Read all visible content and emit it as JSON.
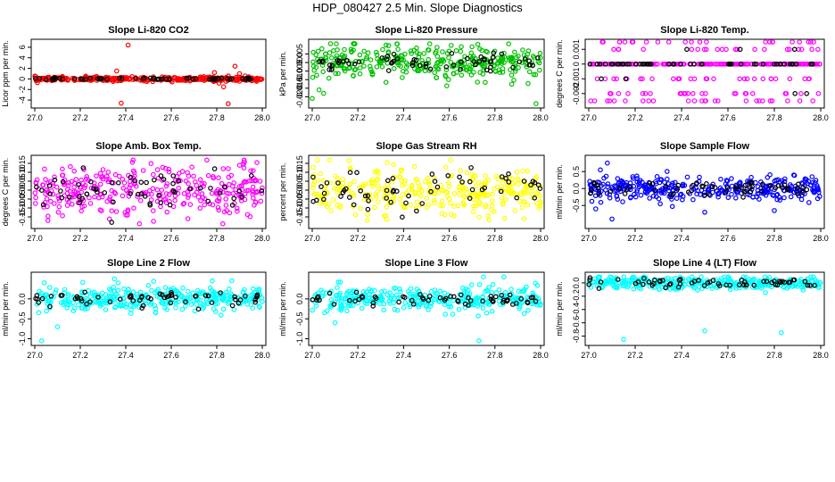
{
  "page_title": "HDP_080427  2.5 Min. Slope Diagnostics",
  "chart_data": [
    {
      "type": "scatter",
      "title": "Slope Li-820 CO2",
      "ylabel": "Licor ppm per min.",
      "color": "#ff0000",
      "xlim": [
        27.0,
        28.0
      ],
      "ylim": [
        -5,
        7
      ],
      "xticks": [
        27.0,
        27.2,
        27.4,
        27.6,
        27.8,
        28.0
      ],
      "xtick_labels": [
        "27.0",
        "27.2",
        "27.4",
        "27.6",
        "27.8",
        "28.0"
      ],
      "yticks": [
        -4,
        -2,
        0,
        2,
        4,
        6
      ],
      "ytick_labels": [
        "-4",
        "-2",
        "0",
        "2",
        "4",
        "6"
      ],
      "center": 0.0,
      "spread": 0.25,
      "black_spread": 0.12,
      "outliers": [
        [
          27.36,
          1.5
        ],
        [
          27.41,
          6.4
        ],
        [
          27.38,
          -4.6
        ],
        [
          27.79,
          1.2
        ],
        [
          27.83,
          -1.5
        ],
        [
          27.85,
          -4.7
        ],
        [
          27.88,
          2.4
        ],
        [
          27.9,
          1.0
        ],
        [
          27.81,
          -0.8
        ]
      ]
    },
    {
      "type": "scatter",
      "title": "Slope Li-820 Pressure",
      "ylabel": "kPa per min.",
      "color": "#00c000",
      "xlim": [
        27.0,
        28.0
      ],
      "ylim": [
        -0.025,
        0.012
      ],
      "xticks": [
        27.0,
        27.2,
        27.4,
        27.6,
        27.8,
        28.0
      ],
      "xtick_labels": [
        "27.0",
        "27.2",
        "27.4",
        "27.6",
        "27.8",
        "28.0"
      ],
      "yticks": [
        -0.02,
        -0.015,
        -0.01,
        -0.005,
        0.0,
        0.005
      ],
      "ytick_labels": [
        "-0.020",
        "-0.015",
        "-0.010",
        "-0.005",
        "0.000",
        "0.005"
      ],
      "center": 0.0,
      "spread": 0.006,
      "black_spread": 0.003,
      "outliers": [
        [
          27.0,
          -0.021
        ],
        [
          27.98,
          -0.024
        ],
        [
          27.08,
          0.011
        ],
        [
          27.18,
          0.011
        ],
        [
          27.05,
          -0.018
        ],
        [
          27.03,
          -0.016
        ]
      ]
    },
    {
      "type": "scatter",
      "title": "Slope Li-820 Temp.",
      "ylabel": "degrees C per min.",
      "color": "#ff00ff",
      "xlim": [
        27.0,
        28.0
      ],
      "ylim": [
        -0.0028,
        0.0015
      ],
      "xticks": [
        27.0,
        27.2,
        27.4,
        27.6,
        27.8,
        28.0
      ],
      "xtick_labels": [
        "27.0",
        "27.2",
        "27.4",
        "27.6",
        "27.8",
        "28.0"
      ],
      "yticks": [
        -0.002,
        -0.001,
        0.0,
        0.001
      ],
      "ytick_labels": [
        "-0.002",
        "-0.001",
        "0",
        "0.001"
      ],
      "center": 0.0,
      "levels": [
        0.0015,
        0.001,
        0.0,
        -0.001,
        -0.002,
        -0.0025
      ],
      "spread": 0.0,
      "black_spread": 0.0,
      "outliers": []
    },
    {
      "type": "scatter",
      "title": "Slope Amb. Box Temp.",
      "ylabel": "degrees C per min.",
      "color": "#ff00ff",
      "xlim": [
        27.0,
        28.0
      ],
      "ylim": [
        -0.2,
        0.18
      ],
      "xticks": [
        27.0,
        27.2,
        27.4,
        27.6,
        27.8,
        28.0
      ],
      "xtick_labels": [
        "27.0",
        "27.2",
        "27.4",
        "27.6",
        "27.8",
        "28.0"
      ],
      "yticks": [
        -0.15,
        -0.1,
        -0.05,
        0.0,
        0.05,
        0.1,
        0.15
      ],
      "ytick_labels": [
        "-0.15",
        "-0.10",
        "-0.05",
        "0.00",
        "0.05",
        "0.10",
        "0.15"
      ],
      "center": 0.0,
      "spread": 0.09,
      "black_spread": 0.06,
      "outliers": []
    },
    {
      "type": "scatter",
      "title": "Slope Gas Stream RH",
      "ylabel": "percent per min.",
      "color": "#ffff00",
      "xlim": [
        27.0,
        28.0
      ],
      "ylim": [
        -0.2,
        0.18
      ],
      "xticks": [
        27.0,
        27.2,
        27.4,
        27.6,
        27.8,
        28.0
      ],
      "xtick_labels": [
        "27.0",
        "27.2",
        "27.4",
        "27.6",
        "27.8",
        "28.0"
      ],
      "yticks": [
        -0.15,
        -0.1,
        -0.05,
        0.0,
        0.05,
        0.1,
        0.15
      ],
      "ytick_labels": [
        "-0.15",
        "-0.10",
        "-0.05",
        "0.00",
        "0.05",
        "0.10",
        "0.15"
      ],
      "center": 0.0,
      "spread": 0.08,
      "black_spread": 0.06,
      "outliers": []
    },
    {
      "type": "scatter",
      "title": "Slope Sample Flow",
      "ylabel": "ml/min per min.",
      "color": "#0000ff",
      "xlim": [
        27.0,
        28.0
      ],
      "ylim": [
        -1.1,
        0.9
      ],
      "xticks": [
        27.0,
        27.2,
        27.4,
        27.6,
        27.8,
        28.0
      ],
      "xtick_labels": [
        "27.0",
        "27.2",
        "27.4",
        "27.6",
        "27.8",
        "28.0"
      ],
      "yticks": [
        -0.5,
        0.0,
        0.5
      ],
      "ytick_labels": [
        "-0.5",
        "0.0",
        "0.5"
      ],
      "center": 0.0,
      "spread": 0.22,
      "black_spread": 0.12,
      "outliers": [
        [
          27.08,
          0.75
        ],
        [
          27.05,
          0.55
        ],
        [
          27.1,
          -0.9
        ],
        [
          27.5,
          -0.7
        ],
        [
          27.8,
          -0.65
        ],
        [
          27.03,
          -0.6
        ]
      ]
    },
    {
      "type": "scatter",
      "title": "Slope Line 2 Flow",
      "ylabel": "ml/min per min.",
      "color": "#00ffff",
      "xlim": [
        27.0,
        28.0
      ],
      "ylim": [
        -1.1,
        0.6
      ],
      "xticks": [
        27.0,
        27.2,
        27.4,
        27.6,
        27.8,
        28.0
      ],
      "xtick_labels": [
        "27.0",
        "27.2",
        "27.4",
        "27.6",
        "27.8",
        "28.0"
      ],
      "yticks": [
        -1.0,
        -0.5,
        0.0
      ],
      "ytick_labels": [
        "-1.0",
        "-0.5",
        "0.0"
      ],
      "center": 0.0,
      "spread": 0.2,
      "black_spread": 0.12,
      "outliers": [
        [
          27.03,
          -1.05
        ],
        [
          27.1,
          -0.7
        ],
        [
          27.35,
          0.5
        ],
        [
          27.78,
          0.45
        ]
      ]
    },
    {
      "type": "scatter",
      "title": "Slope Line 3 Flow",
      "ylabel": "ml/min per min.",
      "color": "#00ffff",
      "xlim": [
        27.0,
        28.0
      ],
      "ylim": [
        -1.1,
        0.6
      ],
      "xticks": [
        27.0,
        27.2,
        27.4,
        27.6,
        27.8,
        28.0
      ],
      "xtick_labels": [
        "27.0",
        "27.2",
        "27.4",
        "27.6",
        "27.8",
        "28.0"
      ],
      "yticks": [
        -1.0,
        -0.5,
        0.0
      ],
      "ytick_labels": [
        "-1.0",
        "-0.5",
        "0.0"
      ],
      "center": 0.0,
      "spread": 0.18,
      "black_spread": 0.1,
      "outliers": [
        [
          27.73,
          -1.05
        ],
        [
          27.75,
          0.55
        ],
        [
          27.1,
          -0.6
        ]
      ]
    },
    {
      "type": "scatter",
      "title": "Slope Line 4 (LT) Flow",
      "ylabel": "ml/min per min.",
      "color": "#00ffff",
      "xlim": [
        27.0,
        28.0
      ],
      "ylim": [
        -0.9,
        0.12
      ],
      "xticks": [
        27.0,
        27.2,
        27.4,
        27.6,
        27.8,
        28.0
      ],
      "xtick_labels": [
        "27.0",
        "27.2",
        "27.4",
        "27.6",
        "27.8",
        "28.0"
      ],
      "yticks": [
        -0.8,
        -0.6,
        -0.4,
        -0.2,
        0.0
      ],
      "ytick_labels": [
        "-0.8",
        "-0.6",
        "-0.4",
        "-0.2",
        "0.0"
      ],
      "center": 0.0,
      "spread": 0.06,
      "black_spread": 0.04,
      "outliers": [
        [
          27.15,
          -0.85
        ],
        [
          27.5,
          -0.72
        ],
        [
          27.83,
          -0.75
        ]
      ]
    }
  ]
}
